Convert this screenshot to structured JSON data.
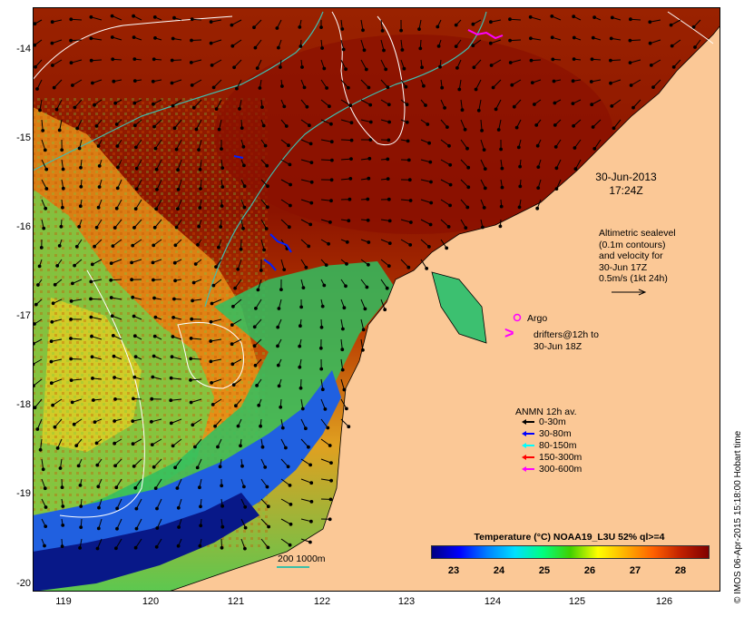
{
  "sst_datetime": {
    "date": "30-Jun-2013",
    "time": "17:24Z"
  },
  "altimetry_note": [
    "Altimetric sealevel",
    "(0.1m contours)",
    "and velocity for",
    "30-Jun 17Z",
    "0.5m/s (1kt 24h)"
  ],
  "argo_label": "Argo",
  "drifter_label": [
    "drifters@12h to",
    "30-Jun 18Z"
  ],
  "anmn_legend": {
    "title": "ANMN 12h av.",
    "items": [
      {
        "label": "0-30m",
        "color": "#000000"
      },
      {
        "label": "30-80m",
        "color": "#0000ff"
      },
      {
        "label": "80-150m",
        "color": "#00ffff"
      },
      {
        "label": "150-300m",
        "color": "#ff0000"
      },
      {
        "label": "300-600m",
        "color": "#ff00ff"
      }
    ]
  },
  "colorbar": {
    "title": "Temperature (°C) NOAA19_L3U 52% ql>=4",
    "ticks": [
      "23",
      "24",
      "25",
      "26",
      "27",
      "28"
    ],
    "range": [
      22.5,
      28.6
    ],
    "stops": [
      "#000080",
      "#0000ff",
      "#0080ff",
      "#00e0ff",
      "#00ff80",
      "#40d000",
      "#ffff00",
      "#ffb000",
      "#ff6000",
      "#c02000",
      "#800000"
    ]
  },
  "scale_bar_label": "200  1000m",
  "x_ticks": [
    "119",
    "120",
    "121",
    "122",
    "123",
    "124",
    "125",
    "126"
  ],
  "y_ticks": [
    "-14",
    "-15",
    "-16",
    "-17",
    "-18",
    "-19",
    "-20"
  ],
  "colors": {
    "land": "#fbc896",
    "warm": "#8c1a00",
    "hot": "#a63000",
    "mid": "#e08a10",
    "cool": "#60d060",
    "cold": "#1030d0",
    "contour": "#ffffff",
    "isobath": "#3fbfb0"
  },
  "footer_credit": "© IMOS 06-Apr-2015 15:18:00 Hobart time"
}
